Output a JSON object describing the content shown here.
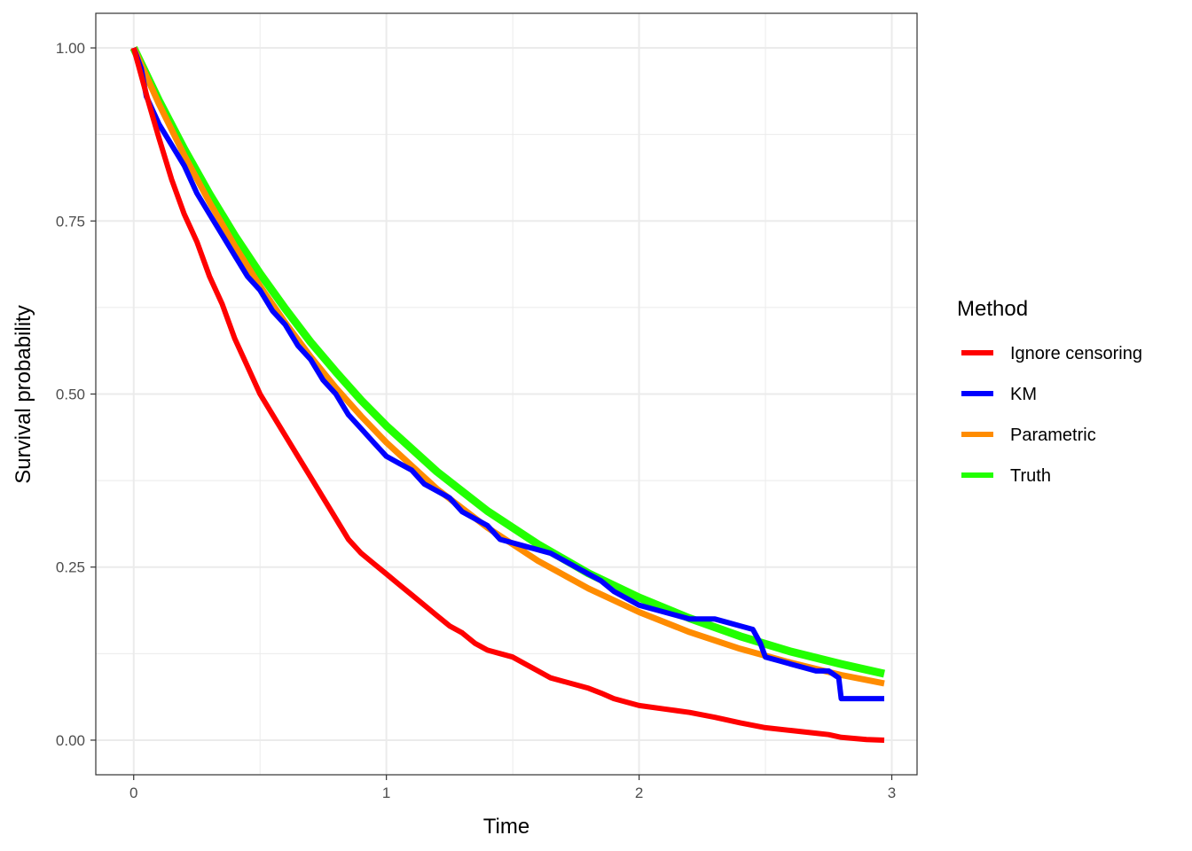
{
  "chart_data": {
    "type": "line",
    "xlabel": "Time",
    "ylabel": "Survival probability",
    "xlim": [
      -0.15,
      3.1
    ],
    "ylim": [
      -0.05,
      1.05
    ],
    "x_ticks": [
      "0",
      "1",
      "2",
      "3"
    ],
    "y_ticks": [
      "0.00",
      "0.25",
      "0.50",
      "0.75",
      "1.00"
    ],
    "grid": true,
    "legend": {
      "title": "Method",
      "placement": "right",
      "entries": [
        "Ignore censoring",
        "KM",
        "Parametric",
        "Truth"
      ]
    },
    "series": [
      {
        "name": "Truth",
        "color": "#22ff00",
        "x": [
          0,
          0.1,
          0.2,
          0.3,
          0.4,
          0.5,
          0.6,
          0.7,
          0.8,
          0.9,
          1.0,
          1.2,
          1.4,
          1.6,
          1.8,
          2.0,
          2.2,
          2.4,
          2.6,
          2.8,
          2.97
        ],
        "y": [
          1.0,
          0.924,
          0.854,
          0.789,
          0.729,
          0.674,
          0.623,
          0.575,
          0.532,
          0.491,
          0.454,
          0.388,
          0.331,
          0.283,
          0.241,
          0.206,
          0.176,
          0.15,
          0.128,
          0.11,
          0.096
        ]
      },
      {
        "name": "Parametric",
        "color": "#ff8c00",
        "x": [
          0,
          0.1,
          0.2,
          0.3,
          0.4,
          0.5,
          0.6,
          0.7,
          0.8,
          0.9,
          1.0,
          1.2,
          1.4,
          1.6,
          1.8,
          2.0,
          2.2,
          2.4,
          2.6,
          2.8,
          2.97
        ],
        "y": [
          1.0,
          0.919,
          0.845,
          0.777,
          0.714,
          0.656,
          0.603,
          0.554,
          0.509,
          0.468,
          0.43,
          0.363,
          0.307,
          0.259,
          0.219,
          0.185,
          0.156,
          0.132,
          0.112,
          0.094,
          0.082
        ]
      },
      {
        "name": "KM",
        "color": "#0000ff",
        "x": [
          0,
          0.03,
          0.05,
          0.1,
          0.15,
          0.2,
          0.25,
          0.3,
          0.35,
          0.4,
          0.45,
          0.5,
          0.55,
          0.6,
          0.65,
          0.7,
          0.75,
          0.8,
          0.85,
          0.9,
          0.95,
          1.0,
          1.05,
          1.1,
          1.15,
          1.2,
          1.25,
          1.3,
          1.35,
          1.4,
          1.45,
          1.5,
          1.55,
          1.6,
          1.65,
          1.7,
          1.75,
          1.8,
          1.85,
          1.9,
          1.95,
          2.0,
          2.05,
          2.1,
          2.15,
          2.2,
          2.3,
          2.35,
          2.4,
          2.45,
          2.48,
          2.5,
          2.55,
          2.6,
          2.65,
          2.7,
          2.75,
          2.79,
          2.8,
          2.85,
          2.9,
          2.97
        ],
        "y": [
          1.0,
          0.97,
          0.93,
          0.89,
          0.86,
          0.83,
          0.79,
          0.76,
          0.73,
          0.7,
          0.67,
          0.65,
          0.62,
          0.6,
          0.57,
          0.55,
          0.52,
          0.5,
          0.47,
          0.45,
          0.43,
          0.41,
          0.4,
          0.39,
          0.37,
          0.36,
          0.35,
          0.33,
          0.32,
          0.31,
          0.29,
          0.285,
          0.28,
          0.275,
          0.27,
          0.26,
          0.25,
          0.24,
          0.23,
          0.215,
          0.205,
          0.195,
          0.19,
          0.185,
          0.18,
          0.175,
          0.175,
          0.17,
          0.165,
          0.16,
          0.14,
          0.12,
          0.115,
          0.11,
          0.105,
          0.1,
          0.1,
          0.09,
          0.06,
          0.06,
          0.06,
          0.06
        ]
      },
      {
        "name": "Ignore censoring",
        "color": "#ff0000",
        "x": [
          0,
          0.03,
          0.06,
          0.1,
          0.15,
          0.2,
          0.25,
          0.3,
          0.35,
          0.4,
          0.45,
          0.5,
          0.55,
          0.6,
          0.65,
          0.7,
          0.75,
          0.8,
          0.85,
          0.9,
          0.95,
          1.0,
          1.05,
          1.1,
          1.15,
          1.2,
          1.25,
          1.3,
          1.35,
          1.4,
          1.45,
          1.5,
          1.55,
          1.6,
          1.65,
          1.7,
          1.75,
          1.8,
          1.85,
          1.9,
          1.95,
          2.0,
          2.1,
          2.2,
          2.3,
          2.4,
          2.5,
          2.6,
          2.7,
          2.75,
          2.8,
          2.9,
          2.97
        ],
        "y": [
          1.0,
          0.96,
          0.92,
          0.87,
          0.81,
          0.76,
          0.72,
          0.67,
          0.63,
          0.58,
          0.54,
          0.5,
          0.47,
          0.44,
          0.41,
          0.38,
          0.35,
          0.32,
          0.29,
          0.27,
          0.255,
          0.24,
          0.225,
          0.21,
          0.195,
          0.18,
          0.165,
          0.155,
          0.14,
          0.13,
          0.125,
          0.12,
          0.11,
          0.1,
          0.09,
          0.085,
          0.08,
          0.075,
          0.068,
          0.06,
          0.055,
          0.05,
          0.045,
          0.04,
          0.033,
          0.025,
          0.018,
          0.014,
          0.01,
          0.008,
          0.004,
          0.001,
          0.0
        ]
      }
    ]
  }
}
